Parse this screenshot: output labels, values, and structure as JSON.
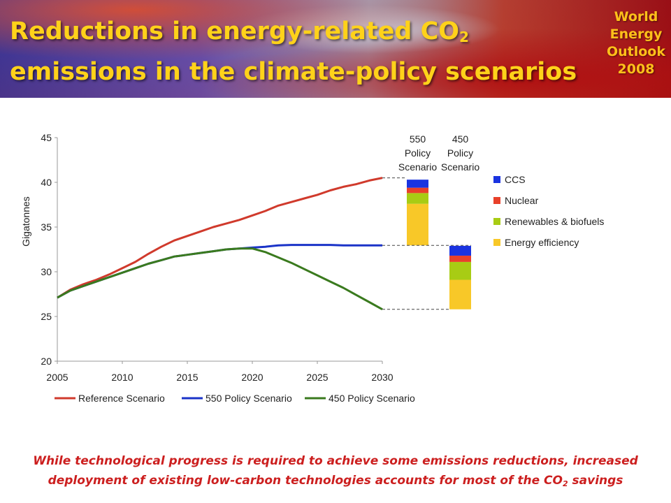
{
  "header": {
    "title_line1": "Reductions in energy-related CO",
    "title_sub": "2",
    "title_line2": "emissions in the climate-policy scenarios",
    "publication": [
      "World",
      "Energy",
      "Outlook",
      "2008"
    ]
  },
  "footer": {
    "line1": "While technological progress is required to achieve some emissions reductions, increased",
    "line2": "deployment of existing low-carbon technologies accounts for most of the CO",
    "line2_sub": "2",
    "line2_end": " savings"
  },
  "colors": {
    "reference": "#d03a2c",
    "p550": "#1a33c8",
    "p450": "#3a7a1e",
    "ccs": "#1a33e0",
    "nuclear": "#e8402a",
    "renewables": "#a8cc14",
    "efficiency": "#f8c828"
  },
  "chart_data": [
    {
      "type": "line",
      "ylabel": "Gigatonnes",
      "ylim": [
        20,
        45
      ],
      "xlim": [
        2005,
        2030
      ],
      "x_ticks": [
        2005,
        2010,
        2015,
        2020,
        2025,
        2030
      ],
      "y_ticks": [
        20,
        25,
        30,
        35,
        40,
        45
      ],
      "grid": false,
      "legend_position": "bottom",
      "series": [
        {
          "name": "Reference Scenario",
          "color_key": "reference",
          "x": [
            2005,
            2006,
            2007,
            2008,
            2009,
            2010,
            2011,
            2012,
            2013,
            2014,
            2015,
            2016,
            2017,
            2018,
            2019,
            2020,
            2021,
            2022,
            2023,
            2024,
            2025,
            2026,
            2027,
            2028,
            2029,
            2030
          ],
          "y": [
            27.1,
            28.0,
            28.6,
            29.1,
            29.7,
            30.4,
            31.1,
            32.0,
            32.8,
            33.5,
            34.0,
            34.5,
            35.0,
            35.4,
            35.8,
            36.3,
            36.8,
            37.4,
            37.8,
            38.2,
            38.6,
            39.1,
            39.5,
            39.8,
            40.2,
            40.5
          ]
        },
        {
          "name": "550 Policy Scenario",
          "color_key": "p550",
          "x": [
            2005,
            2006,
            2007,
            2008,
            2009,
            2010,
            2011,
            2012,
            2013,
            2014,
            2015,
            2016,
            2017,
            2018,
            2019,
            2020,
            2021,
            2022,
            2023,
            2024,
            2025,
            2026,
            2027,
            2028,
            2029,
            2030
          ],
          "y": [
            27.1,
            27.9,
            28.4,
            28.9,
            29.4,
            29.9,
            30.4,
            30.9,
            31.3,
            31.7,
            31.9,
            32.1,
            32.3,
            32.5,
            32.6,
            32.7,
            32.8,
            32.95,
            33.0,
            33.0,
            33.0,
            33.0,
            32.95,
            32.95,
            32.95,
            32.95
          ]
        },
        {
          "name": "450 Policy Scenario",
          "color_key": "p450",
          "x": [
            2005,
            2006,
            2007,
            2008,
            2009,
            2010,
            2011,
            2012,
            2013,
            2014,
            2015,
            2016,
            2017,
            2018,
            2019,
            2020,
            2021,
            2022,
            2023,
            2024,
            2025,
            2026,
            2027,
            2028,
            2029,
            2030
          ],
          "y": [
            27.1,
            27.9,
            28.4,
            28.9,
            29.4,
            29.9,
            30.4,
            30.9,
            31.3,
            31.7,
            31.9,
            32.1,
            32.3,
            32.5,
            32.6,
            32.6,
            32.2,
            31.6,
            31.0,
            30.3,
            29.6,
            28.9,
            28.2,
            27.4,
            26.6,
            25.8
          ]
        }
      ]
    },
    {
      "type": "bar",
      "stacked": true,
      "categories": [
        "550 Policy Scenario",
        "450 Policy Scenario"
      ],
      "category_labels": [
        [
          "550",
          "Policy",
          "Scenario"
        ],
        [
          "450",
          "Policy",
          "Scenario"
        ]
      ],
      "ylim": [
        20,
        45
      ],
      "series": [
        {
          "name": "Energy efficiency",
          "color_key": "efficiency",
          "ranges": [
            [
              32.95,
              37.6
            ],
            [
              25.8,
              29.1
            ]
          ]
        },
        {
          "name": "Renewables & biofuels",
          "color_key": "renewables",
          "ranges": [
            [
              37.6,
              38.8
            ],
            [
              29.1,
              31.1
            ]
          ]
        },
        {
          "name": "Nuclear",
          "color_key": "nuclear",
          "ranges": [
            [
              38.8,
              39.4
            ],
            [
              31.1,
              31.8
            ]
          ]
        },
        {
          "name": "CCS",
          "color_key": "ccs",
          "ranges": [
            [
              39.4,
              40.3
            ],
            [
              31.8,
              32.9
            ]
          ]
        }
      ],
      "legend_order": [
        "CCS",
        "Nuclear",
        "Renewables & biofuels",
        "Energy efficiency"
      ],
      "legend_position": "right"
    }
  ]
}
